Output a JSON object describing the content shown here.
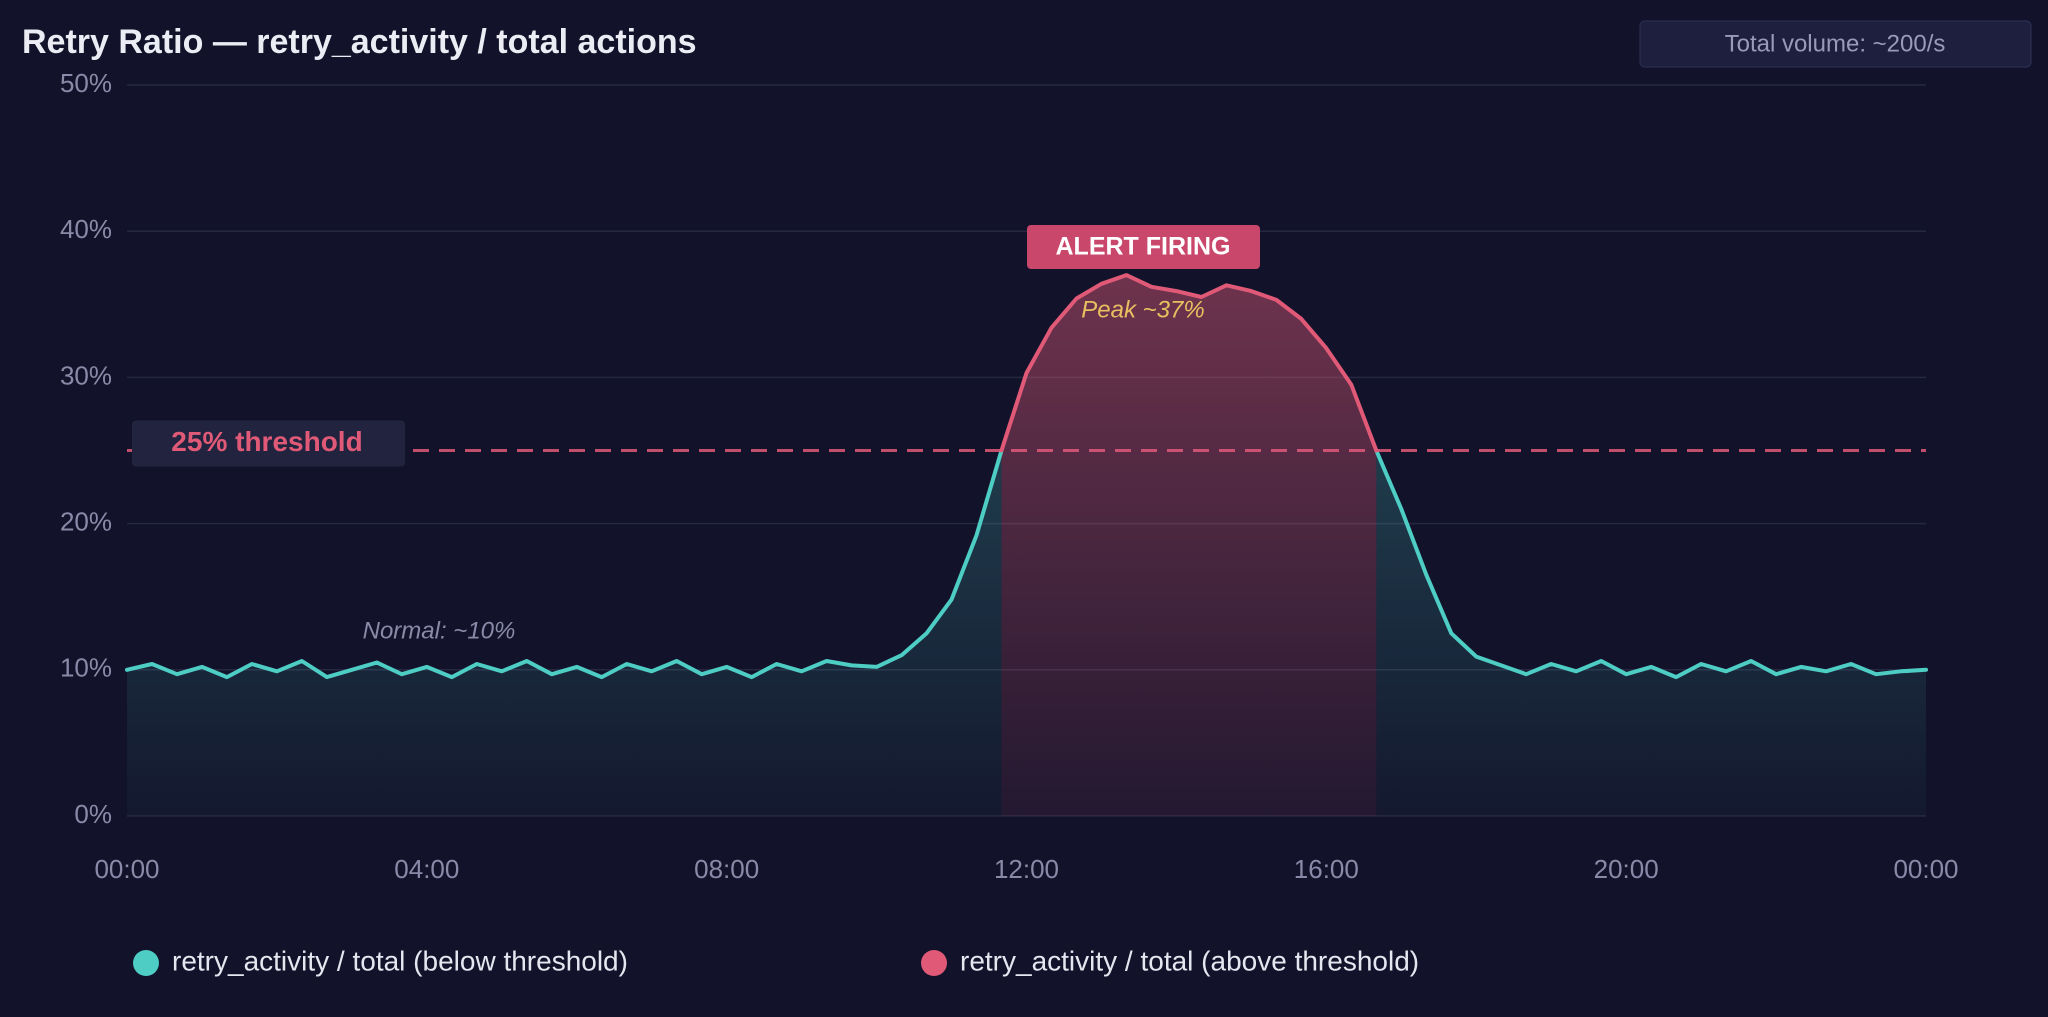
{
  "chart_data": {
    "type": "line",
    "title": "Retry Ratio — retry_activity / total actions",
    "badge": "Total volume: ~200/s",
    "annotations": {
      "alert": "ALERT FIRING",
      "peak": "Peak ~37%",
      "normal": "Normal: ~10%"
    },
    "threshold": {
      "value": 25,
      "label": "25% threshold",
      "color": "#e05a78"
    },
    "x": [
      0,
      20,
      40,
      60,
      80,
      100,
      120,
      140,
      160,
      180,
      200,
      220,
      240,
      260,
      280,
      300,
      320,
      340,
      360,
      380,
      400,
      420,
      440,
      460,
      480,
      500,
      520,
      540,
      560,
      580,
      600,
      620,
      640,
      660,
      680,
      700,
      720,
      740,
      760,
      780,
      800,
      820,
      840,
      860,
      880,
      900,
      920,
      940,
      960,
      980,
      1000,
      1020,
      1040,
      1060,
      1080,
      1100,
      1120,
      1140,
      1160,
      1180,
      1200,
      1220,
      1240,
      1260,
      1280,
      1300,
      1320,
      1340,
      1360,
      1380,
      1400,
      1420,
      1440
    ],
    "xlim": [
      0,
      1440
    ],
    "xticks": [
      {
        "value": 0,
        "label": "00:00"
      },
      {
        "value": 240,
        "label": "04:00"
      },
      {
        "value": 480,
        "label": "08:00"
      },
      {
        "value": 720,
        "label": "12:00"
      },
      {
        "value": 960,
        "label": "16:00"
      },
      {
        "value": 1200,
        "label": "20:00"
      },
      {
        "value": 1440,
        "label": "00:00"
      }
    ],
    "ylim": [
      0,
      50
    ],
    "yticks": [
      {
        "value": 0,
        "label": "0%"
      },
      {
        "value": 10,
        "label": "10%"
      },
      {
        "value": 20,
        "label": "20%"
      },
      {
        "value": 30,
        "label": "30%"
      },
      {
        "value": 40,
        "label": "40%"
      },
      {
        "value": 50,
        "label": "50%"
      }
    ],
    "grid": true,
    "series": [
      {
        "name": "retry_activity / total (below threshold)",
        "color": "#4ecdc4",
        "values": [
          10.0,
          10.4,
          9.7,
          10.2,
          9.5,
          10.4,
          9.9,
          10.6,
          9.5,
          10.0,
          10.5,
          9.7,
          10.2,
          9.5,
          10.4,
          9.9,
          10.6,
          9.7,
          10.2,
          9.5,
          10.4,
          9.9,
          10.6,
          9.7,
          10.2,
          9.5,
          10.4,
          9.9,
          10.6,
          10.3,
          10.2,
          11.0,
          12.5,
          14.8,
          19.2,
          25.0,
          null,
          null,
          null,
          null,
          null,
          null,
          null,
          null,
          null,
          null,
          null,
          null,
          null,
          null,
          25.0,
          21.0,
          16.5,
          12.5,
          10.9,
          10.3,
          9.7,
          10.4,
          9.9,
          10.6,
          9.7,
          10.2,
          9.5,
          10.4,
          9.9,
          10.6,
          9.7,
          10.2,
          9.9,
          10.4,
          9.7,
          9.9,
          10.0
        ]
      },
      {
        "name": "retry_activity / total (above threshold)",
        "color": "#e05a78",
        "values": [
          null,
          null,
          null,
          null,
          null,
          null,
          null,
          null,
          null,
          null,
          null,
          null,
          null,
          null,
          null,
          null,
          null,
          null,
          null,
          null,
          null,
          null,
          null,
          null,
          null,
          null,
          null,
          null,
          null,
          null,
          null,
          null,
          null,
          null,
          null,
          25.0,
          30.3,
          33.4,
          35.4,
          36.4,
          37.0,
          36.2,
          35.9,
          35.5,
          36.3,
          35.9,
          35.3,
          34.0,
          32.0,
          29.5,
          25.0,
          null,
          null,
          null,
          null,
          null,
          null,
          null,
          null,
          null,
          null,
          null,
          null,
          null,
          null,
          null,
          null,
          null,
          null,
          null,
          null,
          null,
          null
        ]
      }
    ]
  }
}
